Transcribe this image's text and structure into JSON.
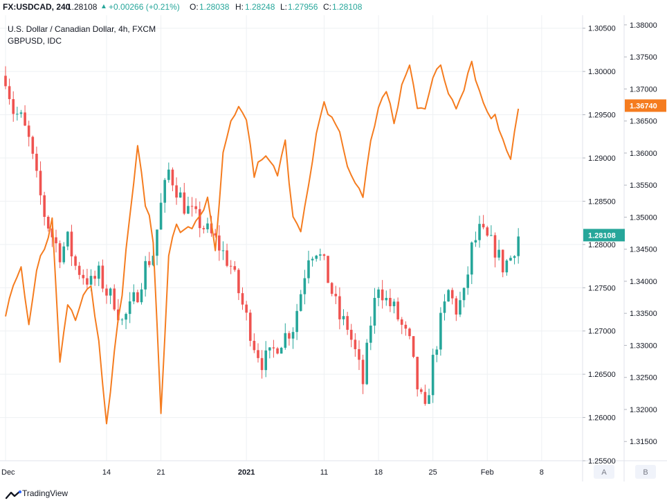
{
  "header": {
    "symbol": "FX:USDCAD, 240",
    "last": "1.28108",
    "change": "+0.00266 (+0.21%)",
    "o_label": "O:",
    "o_value": "1.28038",
    "h_label": "H:",
    "h_value": "1.28248",
    "l_label": "L:",
    "l_value": "1.27956",
    "c_label": "C:",
    "c_value": "1.28108"
  },
  "legend": {
    "title": "U.S. Dollar / Canadian Dollar, 4h, FXCM",
    "overlay": "GBPUSD, IDC"
  },
  "footer": {
    "brand": "TradingView",
    "scale_a": "A",
    "scale_b": "B"
  },
  "colors": {
    "up": "#26a69a",
    "down": "#ef5350",
    "overlay": "#f57c1f",
    "last_badge_main": "#26a69a",
    "last_badge_overlay": "#f57c1f",
    "grid": "#eef0f3",
    "axis_text": "#131722"
  },
  "chart_data": {
    "type": "candlestick",
    "main_series": {
      "name": "U.S. Dollar / Canadian Dollar",
      "last_value": "1.28108",
      "x_ticks": [
        "Dec",
        "14",
        "21",
        "2021",
        "11",
        "18",
        "25",
        "Feb",
        "8"
      ],
      "x_tick_positions_days": [
        0,
        13,
        20,
        31,
        41,
        48,
        55,
        62,
        69
      ],
      "y_axis_ticks": [
        "1.30500",
        "1.30000",
        "1.29500",
        "1.29000",
        "1.28500",
        "1.28000",
        "1.27500",
        "1.27000",
        "1.26500",
        "1.26000",
        "1.25500"
      ],
      "ylim": [
        1.255,
        1.3065
      ],
      "approx_path_days": [
        0,
        1,
        2,
        3,
        4,
        5,
        6,
        7,
        8,
        9,
        10,
        11,
        12,
        13,
        14,
        15,
        16,
        17,
        18,
        19,
        20,
        21,
        22,
        23,
        24,
        25,
        26,
        27,
        28,
        29,
        30,
        31,
        32,
        33,
        34,
        35,
        36,
        37,
        38,
        39,
        40,
        41,
        42,
        43,
        44,
        45,
        46,
        47,
        48,
        49,
        50,
        51,
        52,
        53,
        54,
        55,
        56,
        57,
        58,
        59,
        60,
        61,
        62,
        63,
        64,
        65,
        66
      ],
      "approx_path_values": [
        1.2995,
        1.2955,
        1.2945,
        1.292,
        1.2875,
        1.2835,
        1.281,
        1.279,
        1.2805,
        1.2775,
        1.2765,
        1.2755,
        1.2765,
        1.2745,
        1.2735,
        1.271,
        1.2725,
        1.2745,
        1.2775,
        1.279,
        1.2845,
        1.2885,
        1.2865,
        1.2845,
        1.2835,
        1.2825,
        1.2815,
        1.2805,
        1.279,
        1.2775,
        1.2745,
        1.2715,
        1.2685,
        1.2665,
        1.267,
        1.2685,
        1.2695,
        1.2705,
        1.2745,
        1.279,
        1.2795,
        1.2775,
        1.2745,
        1.2715,
        1.2705,
        1.2675,
        1.264,
        1.271,
        1.2755,
        1.2735,
        1.2725,
        1.2705,
        1.2685,
        1.2635,
        1.2605,
        1.2665,
        1.271,
        1.2745,
        1.2725,
        1.274,
        1.2795,
        1.2815,
        1.2805,
        1.2795,
        1.2775,
        1.2785,
        1.281
      ]
    },
    "overlay_series": {
      "name": "GBPUSD, IDC",
      "last_value": "1.36740",
      "y_axis_ticks": [
        "1.38000",
        "1.37500",
        "1.37000",
        "1.36500",
        "1.36000",
        "1.35500",
        "1.35000",
        "1.34500",
        "1.34000",
        "1.33500",
        "1.33000",
        "1.32500",
        "1.32000",
        "1.31500"
      ],
      "ylim": [
        1.312,
        1.3815
      ],
      "approx_path_days": [
        0,
        1,
        2,
        3,
        4,
        5,
        6,
        7,
        8,
        9,
        10,
        11,
        12,
        13,
        14,
        15,
        16,
        17,
        18,
        19,
        20,
        21,
        22,
        23,
        24,
        25,
        26,
        27,
        28,
        29,
        30,
        31,
        32,
        33,
        34,
        35,
        36,
        37,
        38,
        39,
        40,
        41,
        42,
        43,
        44,
        45,
        46,
        47,
        48,
        49,
        50,
        51,
        52,
        53,
        54,
        55,
        56,
        57,
        58,
        59,
        60,
        61,
        62,
        63,
        64,
        65,
        66
      ],
      "approx_path_values": [
        1.3345,
        1.3395,
        1.3415,
        1.3325,
        1.3415,
        1.3455,
        1.3495,
        1.3275,
        1.3365,
        1.3345,
        1.3385,
        1.3395,
        1.3305,
        1.3185,
        1.3285,
        1.3385,
        1.3505,
        1.3605,
        1.3525,
        1.3465,
        1.3195,
        1.3445,
        1.3485,
        1.3475,
        1.3485,
        1.3505,
        1.3525,
        1.3445,
        1.3595,
        1.3645,
        1.3665,
        1.3655,
        1.3565,
        1.3595,
        1.3585,
        1.3565,
        1.3615,
        1.3505,
        1.3485,
        1.3545,
        1.3625,
        1.3675,
        1.3655,
        1.3635,
        1.3575,
        1.3555,
        1.3535,
        1.3615,
        1.3675,
        1.3695,
        1.3645,
        1.3705,
        1.3735,
        1.3675,
        1.3675,
        1.3715,
        1.3735,
        1.3695,
        1.3675,
        1.3705,
        1.3745,
        1.3695,
        1.3665,
        1.3655,
        1.3625,
        1.3595,
        1.3674
      ]
    }
  }
}
